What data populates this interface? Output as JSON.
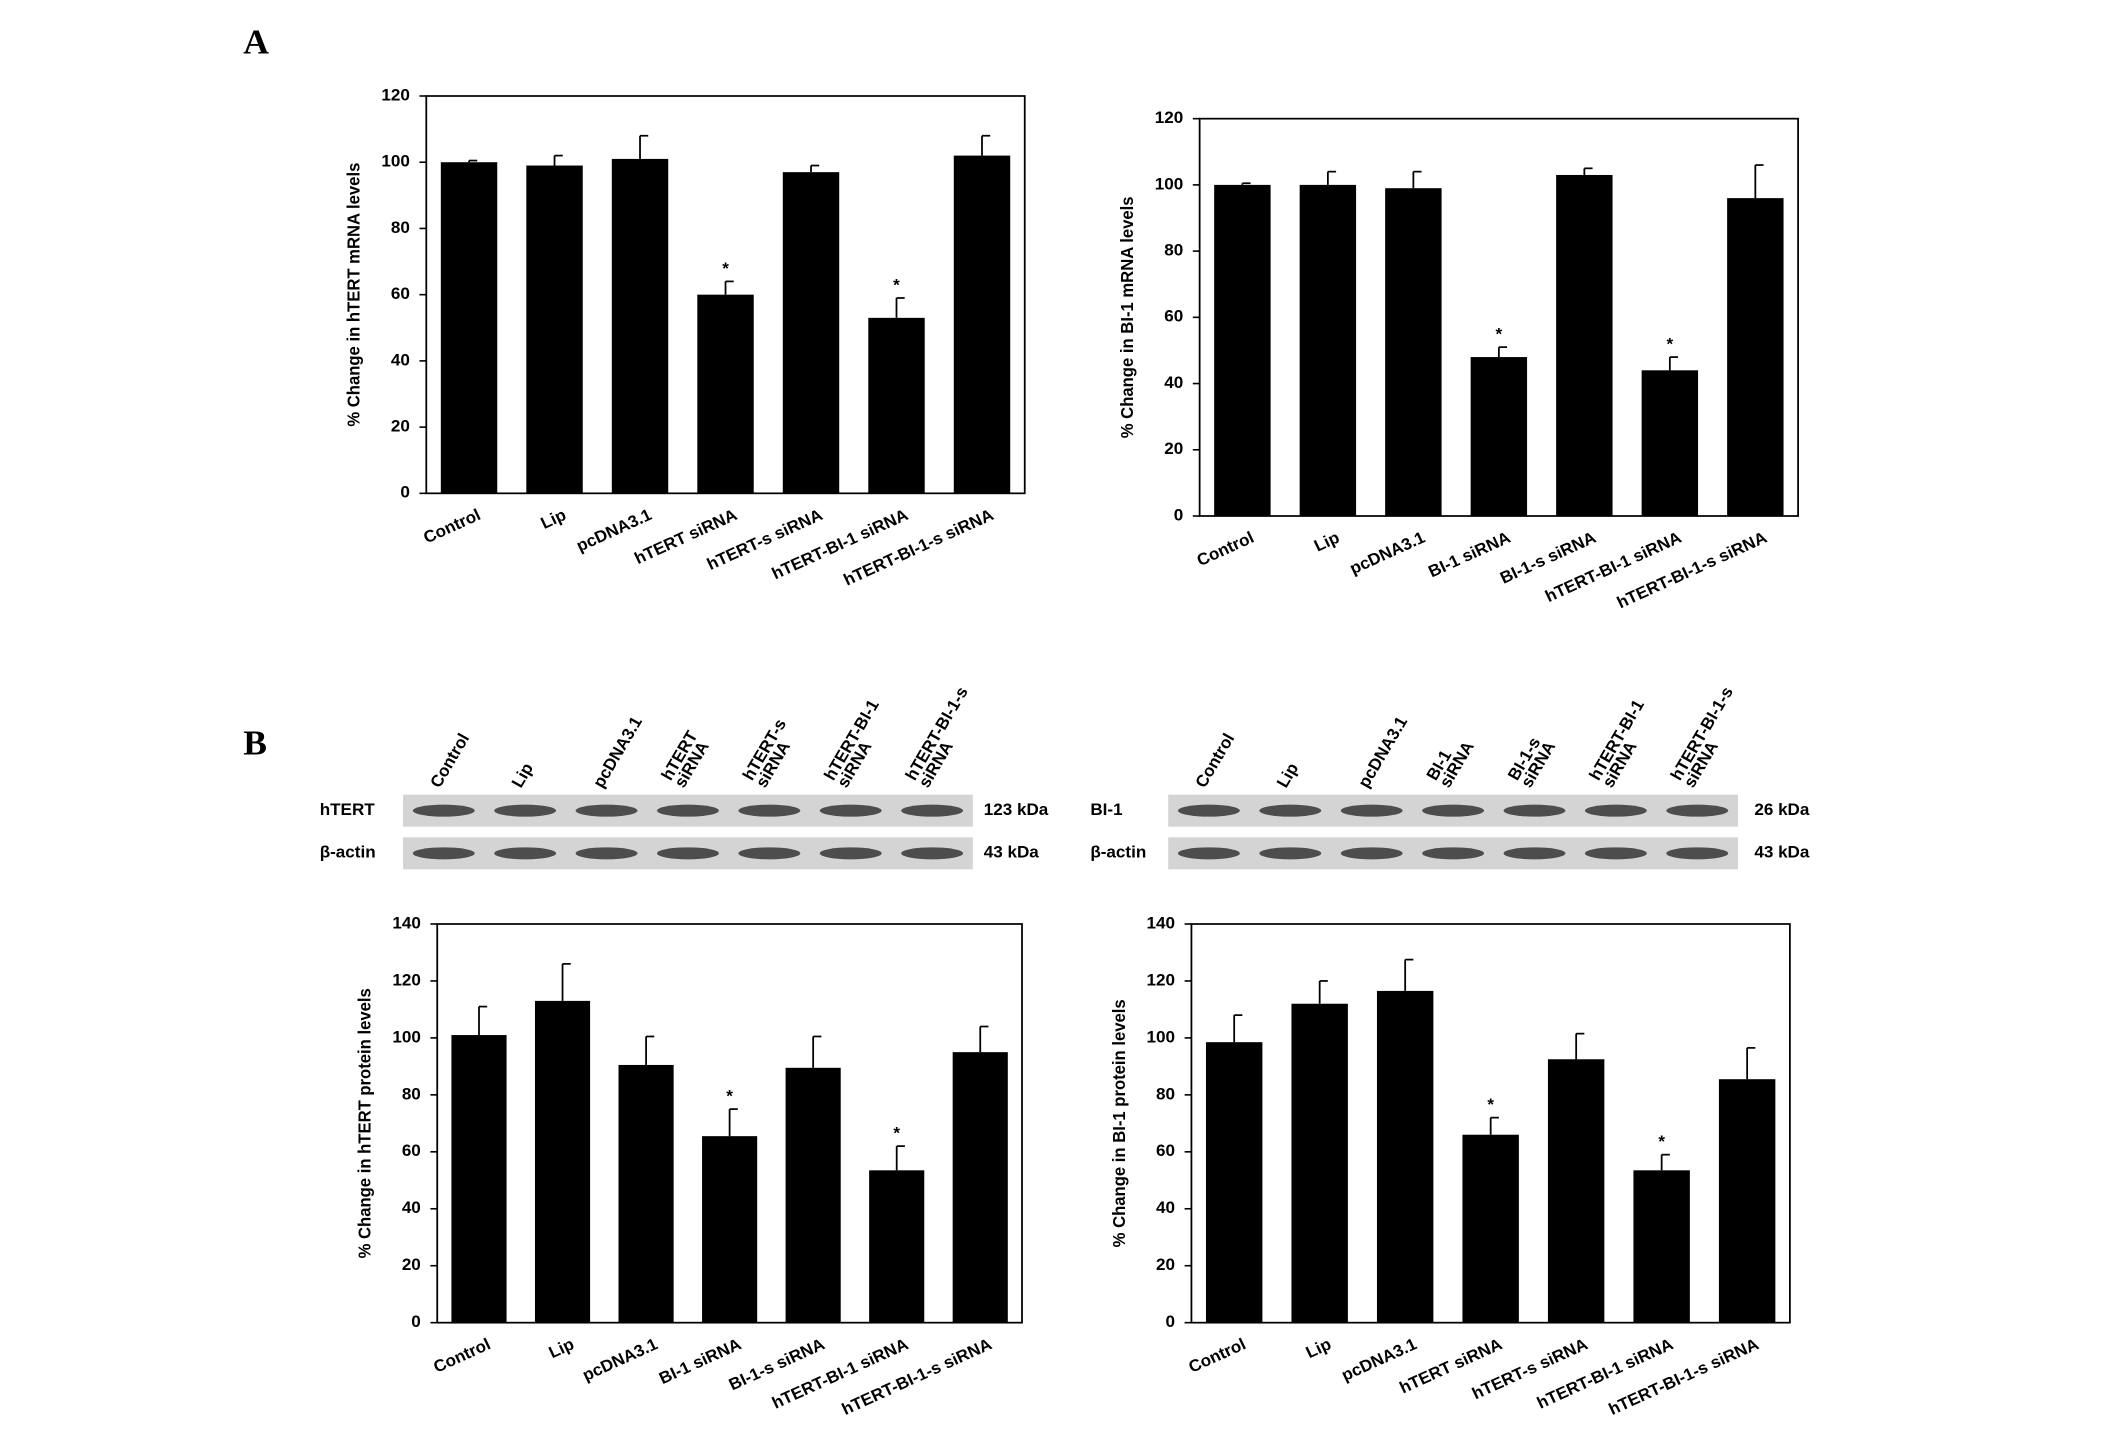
{
  "panels": [
    "A",
    "B"
  ],
  "chart_data": [
    {
      "type": "bar",
      "ylabel": "% Change in hTERT mRNA levels",
      "categories": [
        "Control",
        "Lip",
        "pcDNA3.1",
        "hTERT siRNA",
        "hTERT-s siRNA",
        "hTERT-BI-1 siRNA",
        "hTERT-BI-1-s siRNA"
      ],
      "values": [
        100,
        99,
        101,
        60,
        97,
        53,
        102
      ],
      "errors": [
        0.5,
        3,
        7,
        4,
        2,
        6,
        6
      ],
      "markers": [
        null,
        null,
        null,
        "*",
        null,
        "*",
        null
      ],
      "color": "#000000",
      "ylim": [
        0,
        120
      ],
      "yticks": [
        0,
        20,
        40,
        60,
        80,
        100,
        120
      ]
    },
    {
      "type": "bar",
      "ylabel": "% Change in BI-1 mRNA levels",
      "categories": [
        "Control",
        "Lip",
        "pcDNA3.1",
        "BI-1 siRNA",
        "BI-1-s siRNA",
        "hTERT-BI-1 siRNA",
        "hTERT-BI-1-s siRNA"
      ],
      "values": [
        100,
        100,
        99,
        48,
        103,
        44,
        96
      ],
      "errors": [
        0.5,
        4,
        5,
        3,
        2,
        4,
        10
      ],
      "markers": [
        null,
        null,
        null,
        "*",
        null,
        "*",
        null
      ],
      "color": "#000000",
      "ylim": [
        0,
        120
      ],
      "yticks": [
        0,
        20,
        40,
        60,
        80,
        100,
        120
      ]
    },
    {
      "type": "bar",
      "ylabel": "% Change in hTERT protein levels",
      "categories": [
        "Control",
        "Lip",
        "pcDNA3.1",
        "BI-1 siRNA",
        "BI-1-s siRNA",
        "hTERT-BI-1 siRNA",
        "hTERT-BI-1-s siRNA"
      ],
      "values": [
        101,
        113,
        90.5,
        65.5,
        89.5,
        53.5,
        95
      ],
      "errors": [
        10,
        13,
        10,
        9.5,
        11,
        8.5,
        9
      ],
      "markers": [
        null,
        null,
        null,
        "*",
        null,
        "*",
        null
      ],
      "color": "#000000",
      "ylim": [
        0,
        140
      ],
      "yticks": [
        0,
        20,
        40,
        60,
        80,
        100,
        120,
        140
      ]
    },
    {
      "type": "bar",
      "ylabel": "% Change in BI-1 protein levels",
      "categories": [
        "Control",
        "Lip",
        "pcDNA3.1",
        "hTERT siRNA",
        "hTERT-s siRNA",
        "hTERT-BI-1 siRNA",
        "hTERT-BI-1-s siRNA"
      ],
      "values": [
        98.5,
        112,
        116.5,
        66,
        92.5,
        53.5,
        85.5
      ],
      "errors": [
        9.5,
        8,
        11,
        6,
        9,
        5.5,
        11
      ],
      "markers": [
        null,
        null,
        null,
        "*",
        null,
        "*",
        null
      ],
      "color": "#000000",
      "ylim": [
        0,
        140
      ],
      "yticks": [
        0,
        20,
        40,
        60,
        80,
        100,
        120,
        140
      ]
    }
  ],
  "blots": [
    {
      "lanes": [
        [
          "Control"
        ],
        [
          "Lip"
        ],
        [
          "pcDNA3.1"
        ],
        [
          "hTERT",
          "siRNA"
        ],
        [
          "hTERT-s",
          "siRNA"
        ],
        [
          "hTERT-BI-1",
          "siRNA"
        ],
        [
          "hTERT-BI-1-s",
          "siRNA"
        ]
      ],
      "rows": [
        {
          "label": "hTERT",
          "size": "123 kDa"
        },
        {
          "label": "β-actin",
          "size": "43 kDa"
        }
      ]
    },
    {
      "lanes": [
        [
          "Control"
        ],
        [
          "Lip"
        ],
        [
          "pcDNA3.1"
        ],
        [
          "BI-1",
          "siRNA"
        ],
        [
          "BI-1-s",
          "siRNA"
        ],
        [
          "hTERT-BI-1",
          "siRNA"
        ],
        [
          "hTERT-BI-1-s",
          "siRNA"
        ]
      ],
      "rows": [
        {
          "label": "BI-1",
          "size": "26 kDa"
        },
        {
          "label": "β-actin",
          "size": "43 kDa"
        }
      ]
    }
  ]
}
